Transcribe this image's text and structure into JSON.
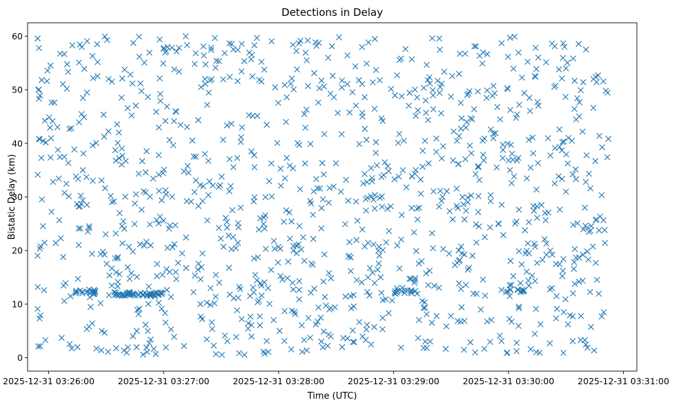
{
  "chart_data": {
    "type": "scatter",
    "title": "Detections in Delay",
    "xlabel": "Time (UTC)",
    "ylabel": "Bistatic Delay (km)",
    "marker": "x",
    "color": "#1f77b4",
    "grid": false,
    "legend": "none",
    "xlim": [
      "2025-12-31 03:25:49",
      "2025-12-31 03:31:07"
    ],
    "ylim": [
      -2.5,
      62.5
    ],
    "x_ticks": [
      "2025-12-31 03:26:00",
      "2025-12-31 03:27:00",
      "2025-12-31 03:28:00",
      "2025-12-31 03:29:00",
      "2025-12-31 03:30:00",
      "2025-12-31 03:31:00"
    ],
    "y_ticks": [
      "0",
      "10",
      "20",
      "30",
      "40",
      "50",
      "60"
    ],
    "time_start": "2025-12-31 03:25:54",
    "time_end": "2025-12-31 03:30:54",
    "num_points": 1150,
    "delay_range": [
      0.5,
      60
    ]
  }
}
